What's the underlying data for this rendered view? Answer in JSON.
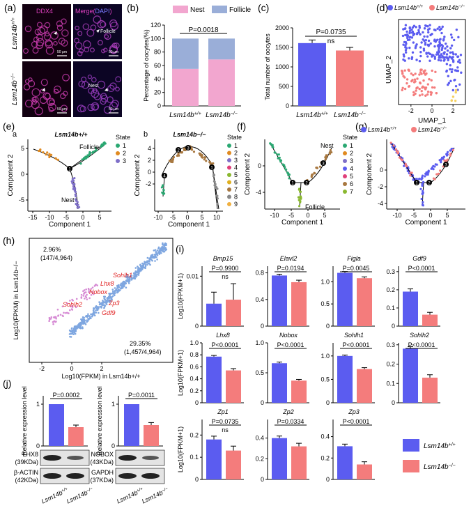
{
  "colors": {
    "wt": "#5b5cf0",
    "ko": "#f47c7c",
    "nest_pink": "#f2a6cf",
    "follicle_blue": "#9aaed8",
    "magenta": "#e040c0",
    "dapi": "#3b3bd8",
    "scatter_blue": "#7ea6e0",
    "scatter_pink": "#d68ad4",
    "red_label": "#e02020"
  },
  "genotypes": {
    "wt_base": "Lsm14b",
    "wt_sup": "+/+",
    "ko_base": "Lsm14b",
    "ko_sup": "−/−"
  },
  "panels": {
    "a": "(a)",
    "b": "(b)",
    "c": "(c)",
    "d": "(d)",
    "e": "(e)",
    "f": "(f)",
    "g": "(g)",
    "h": "(h)",
    "i": "(i)",
    "j": "(j)"
  },
  "micro": {
    "ddx4": "DDX4",
    "merge": "Merge(",
    "dapi": "DAPI",
    "close": ")",
    "follicle": "Follicle",
    "nest": "Nest",
    "scale": "50 μm"
  },
  "chart_data": [
    {
      "id": "b",
      "type": "bar",
      "categories": [
        "Lsm14b+/+",
        "Lsm14b−/−"
      ],
      "series": [
        {
          "name": "Nest",
          "values": [
            55,
            69
          ]
        },
        {
          "name": "Follicle",
          "values": [
            45,
            31
          ]
        }
      ],
      "ylabel": "Percentage of oocytes(%)",
      "ylim": [
        0,
        120
      ],
      "yticks": [
        "0",
        "20",
        "40",
        "60",
        "80",
        "100",
        "120"
      ],
      "stat": "P=0.0018"
    },
    {
      "id": "c",
      "type": "bar",
      "categories": [
        "Lsm14b+/+",
        "Lsm14b−/−"
      ],
      "values": [
        1610,
        1420
      ],
      "errors": [
        80,
        80
      ],
      "ylabel": "Total number of oocytes",
      "ylim": [
        0,
        2000
      ],
      "yticks": [
        "0",
        "500",
        "1000",
        "1500",
        "2000"
      ],
      "stat": "P=0.0735",
      "sig": "ns"
    },
    {
      "id": "d",
      "type": "scatter",
      "xlabel": "UMAP_1",
      "ylabel": "UMAP_2",
      "xticks": [
        "-2",
        "0",
        "2"
      ],
      "legend": [
        "Lsm14b+/+",
        "Lsm14b−/−"
      ]
    },
    {
      "id": "e-a",
      "type": "scatter",
      "title": "Lsm14b+/+",
      "xlabel": "Component 1",
      "ylabel": "Component 2",
      "xticks": [
        "-15",
        "-10",
        "-5",
        "0",
        "5"
      ],
      "yticks": [
        "5",
        "0",
        "-5"
      ],
      "legend_title": "State",
      "states": [
        "1",
        "2",
        "3"
      ],
      "annotations": [
        "Follicle",
        "Nest"
      ]
    },
    {
      "id": "e-b",
      "type": "scatter",
      "title": "Lsm14b−/−",
      "xlabel": "Component 1",
      "ylabel": "Component 2",
      "xticks": [
        "-10",
        "-5",
        "0",
        "5",
        "10"
      ],
      "yticks": [
        "4",
        "2",
        "0",
        "-2"
      ],
      "legend_title": "State",
      "states": [
        "1",
        "2",
        "3",
        "4",
        "5",
        "6",
        "7",
        "8",
        "9"
      ]
    },
    {
      "id": "f",
      "type": "scatter",
      "xlabel": "Component 1",
      "ylabel": "Component 2",
      "xticks": [
        "-10",
        "-5",
        "0",
        "5"
      ],
      "yticks": [
        "0",
        "-4"
      ],
      "legend_title": "State",
      "states": [
        "1",
        "2",
        "3",
        "4",
        "5",
        "6",
        "7"
      ],
      "annotations": [
        "Nest",
        "Follicle"
      ]
    },
    {
      "id": "g",
      "type": "scatter",
      "xlabel": "Component 1",
      "ylabel": "Component 2",
      "xticks": [
        "-10",
        "-5",
        "0",
        "5"
      ],
      "yticks": [
        "0",
        "-2",
        "-4"
      ],
      "legend": [
        "Lsm14b+/+",
        "Lsm14b−/−"
      ]
    },
    {
      "id": "h",
      "type": "scatter",
      "xlabel": "Log10(FPKM) in Lsm14b+/+",
      "ylabel": "Log10(FPKM) in Lsm14b−/−",
      "xticks": [
        "-2",
        "0",
        "2"
      ],
      "annotations": [
        "2.96%",
        "(147/4,964)",
        "29.35%",
        "(1,457/4,964)"
      ],
      "genes": [
        "Sohlh1",
        "Lhx8",
        "Nobox",
        "Sohlh2",
        "Zp3",
        "Gdf9"
      ]
    },
    {
      "id": "i",
      "type": "bar",
      "ylabel": "Log10(FPKM+1)",
      "panels": [
        {
          "gene": "Bmp15",
          "values": [
            0.0045,
            0.0053
          ],
          "errors": [
            0.0023,
            0.0032
          ],
          "ymax": 0.012,
          "yticks": [
            "0",
            "0.01"
          ],
          "stat": "P=0.9900",
          "sig": "ns"
        },
        {
          "gene": "Elavl2",
          "values": [
            0.76,
            0.66
          ],
          "errors": [
            0.02,
            0.03
          ],
          "ymax": 0.9,
          "yticks": [
            "0",
            "0.4",
            "0.8"
          ],
          "stat": "P=0.0194"
        },
        {
          "gene": "Figla",
          "values": [
            1.2,
            1.08
          ],
          "errors": [
            0.03,
            0.03
          ],
          "ymax": 1.35,
          "yticks": [
            "0",
            "0.5",
            "1.0"
          ],
          "stat": "P=0.0045"
        },
        {
          "gene": "Gdf9",
          "values": [
            0.19,
            0.063
          ],
          "errors": [
            0.015,
            0.013
          ],
          "ymax": 0.33,
          "yticks": [
            "0",
            "0.1",
            "0.2",
            "0.3"
          ],
          "stat": "P<0.0001"
        },
        {
          "gene": "Lhx8",
          "values": [
            0.77,
            0.54
          ],
          "errors": [
            0.02,
            0.03
          ],
          "ymax": 1.0,
          "yticks": [
            "0",
            "0.2",
            "0.4",
            "0.6",
            "0.8",
            "1.0"
          ],
          "stat": "P<0.0001"
        },
        {
          "gene": "Nobox",
          "values": [
            0.66,
            0.37
          ],
          "errors": [
            0.02,
            0.02
          ],
          "ymax": 1.0,
          "yticks": [
            "0",
            "0.5",
            "1.0"
          ],
          "stat": "P<0.0001"
        },
        {
          "gene": "Sohlh1",
          "values": [
            1.0,
            0.72
          ],
          "errors": [
            0.02,
            0.03
          ],
          "ymax": 1.28,
          "yticks": [
            "0",
            "0.5",
            "1.0"
          ],
          "stat": "P<0.0001"
        },
        {
          "gene": "Sohlh2",
          "values": [
            0.28,
            0.13
          ],
          "errors": [
            0.01,
            0.015
          ],
          "ymax": 0.31,
          "yticks": [
            "0",
            "0.1",
            "0.2",
            "0.3"
          ],
          "stat": "P<0.0001"
        },
        {
          "gene": "Zp1",
          "values": [
            0.18,
            0.13
          ],
          "errors": [
            0.015,
            0.02
          ],
          "ymax": 0.27,
          "yticks": [
            "0",
            "0.1",
            "0.2"
          ],
          "stat": "P=0.0735",
          "sig": "ns"
        },
        {
          "gene": "Zp2",
          "values": [
            0.4,
            0.32
          ],
          "errors": [
            0.02,
            0.03
          ],
          "ymax": 0.58,
          "yticks": [
            "0",
            "0.2",
            "0.4"
          ],
          "stat": "P=0.0334"
        },
        {
          "gene": "Zp3",
          "values": [
            0.31,
            0.14
          ],
          "errors": [
            0.02,
            0.025
          ],
          "ymax": 0.56,
          "yticks": [
            "0",
            "0.2",
            "0.4"
          ],
          "stat": "P<0.0001"
        }
      ],
      "legend": [
        "Lsm14b+/+",
        "Lsm14b−/−"
      ]
    },
    {
      "id": "j",
      "type": "bar",
      "ylabel": "Relative expression level",
      "panels": [
        {
          "values": [
            1.0,
            0.45
          ],
          "errors": [
            0.0,
            0.05
          ],
          "stat": "P=0.0002",
          "blot": [
            "LHX8",
            "(39KDa)",
            "β-ACTIN",
            "(42KDa)"
          ]
        },
        {
          "values": [
            1.0,
            0.5
          ],
          "errors": [
            0.0,
            0.06
          ],
          "stat": "P=0.0011",
          "blot": [
            "NOBOX",
            "(43KDa)",
            "GAPDH",
            "(37KDa)"
          ]
        }
      ],
      "yticks": [
        "0",
        "1"
      ]
    }
  ]
}
